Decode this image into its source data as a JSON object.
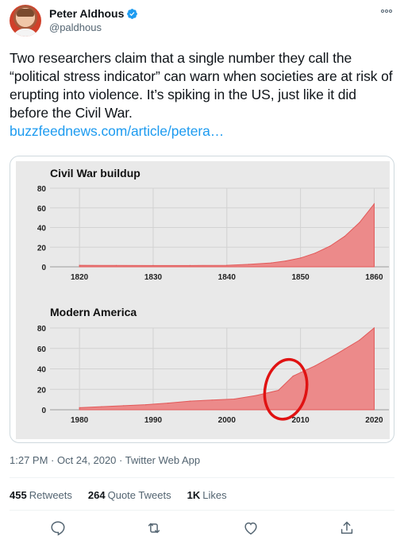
{
  "author": {
    "name": "Peter Aldhous",
    "handle": "@paldhous",
    "verified": true
  },
  "tweet": {
    "text": "Two researchers claim that a single number they call the “political stress indicator” can warn when societies are at risk of erupting into violence. It’s spiking in the US, just like it did before the Civil War.",
    "link": "buzzfeednews.com/article/petera…"
  },
  "meta": {
    "time": "1:27 PM · Oct 24, 2020 · Twitter Web App"
  },
  "stats": {
    "retweets_count": "455",
    "retweets_label": "Retweets",
    "quotes_count": "264",
    "quotes_label": "Quote Tweets",
    "likes_count": "1K",
    "likes_label": "Likes"
  },
  "icons": {
    "more": "more-icon",
    "reply": "reply-icon",
    "retweet": "retweet-icon",
    "like": "like-icon",
    "share": "share-icon",
    "verified": "verified-badge-icon"
  },
  "colors": {
    "area_fill": "#ec8a8a",
    "area_stroke": "#e25858",
    "annotation": "#e01212",
    "link": "#1d9bf0",
    "card_bg": "#e9e9e9"
  },
  "chart_data": [
    {
      "type": "area",
      "title": "Civil War buildup",
      "xlabel": "",
      "ylabel": "",
      "xlim": [
        1816,
        1862
      ],
      "ylim": [
        0,
        80
      ],
      "xticks": [
        1820,
        1830,
        1840,
        1850,
        1860
      ],
      "yticks": [
        0,
        20,
        40,
        60,
        80
      ],
      "grid": true,
      "x": [
        1820,
        1825,
        1830,
        1835,
        1840,
        1843,
        1846,
        1848,
        1850,
        1852,
        1854,
        1856,
        1858,
        1860
      ],
      "values": [
        1.5,
        1.4,
        1.3,
        1.3,
        1.5,
        2.5,
        4,
        6,
        9,
        14,
        21,
        31,
        45,
        64
      ]
    },
    {
      "type": "area",
      "title": "Modern America",
      "xlabel": "",
      "ylabel": "",
      "xlim": [
        1976,
        2022
      ],
      "ylim": [
        0,
        80
      ],
      "xticks": [
        1980,
        1990,
        2000,
        2010,
        2020
      ],
      "yticks": [
        0,
        20,
        40,
        60,
        80
      ],
      "grid": true,
      "x": [
        1980,
        1983,
        1986,
        1989,
        1992,
        1995,
        1998,
        2001,
        2004,
        2007,
        2009,
        2012,
        2015,
        2018,
        2020
      ],
      "values": [
        2,
        3,
        4,
        5,
        6.5,
        8.5,
        9.5,
        10.5,
        14,
        19,
        33,
        43,
        55,
        68,
        80
      ],
      "annotation": {
        "shape": "circle",
        "center_x": 2008,
        "center_y": 20,
        "color": "#e01212"
      }
    }
  ]
}
